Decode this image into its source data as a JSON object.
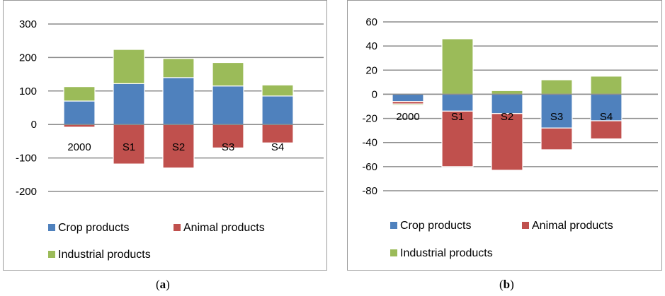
{
  "chart_data": [
    {
      "panel": "a",
      "type": "bar",
      "stacked": true,
      "caption": "a",
      "categories": [
        "2000",
        "S1",
        "S2",
        "S3",
        "S4"
      ],
      "series": [
        {
          "name": "Crop products",
          "color": "#4f81bd",
          "values": [
            70,
            122,
            140,
            115,
            85
          ]
        },
        {
          "name": "Animal products",
          "color": "#c0504d",
          "values": [
            -8,
            -118,
            -130,
            -70,
            -55
          ]
        },
        {
          "name": "Industrial products",
          "color": "#9bbb59",
          "values": [
            43,
            102,
            57,
            70,
            33
          ]
        }
      ],
      "yticks": [
        "300",
        "200",
        "100",
        "0",
        "-100",
        "-200"
      ],
      "ylim": [
        -200,
        300
      ],
      "legend": "bottom",
      "grid": true
    },
    {
      "panel": "b",
      "type": "bar",
      "stacked": true,
      "caption": "b",
      "categories": [
        "2000",
        "S1",
        "S2",
        "S3",
        "S4"
      ],
      "series": [
        {
          "name": "Crop products",
          "color": "#4f81bd",
          "values": [
            -6,
            -14,
            -16,
            -28,
            -22
          ]
        },
        {
          "name": "Animal products",
          "color": "#c0504d",
          "values": [
            -2,
            -46,
            -47,
            -18,
            -15
          ]
        },
        {
          "name": "Industrial products",
          "color": "#9bbb59",
          "values": [
            -1,
            46,
            3,
            12,
            15
          ]
        }
      ],
      "yticks": [
        "60",
        "40",
        "20",
        "0",
        "-20",
        "-40",
        "-60",
        "-80"
      ],
      "ylim": [
        -80,
        60
      ],
      "legend": "bottom",
      "grid": true
    }
  ]
}
